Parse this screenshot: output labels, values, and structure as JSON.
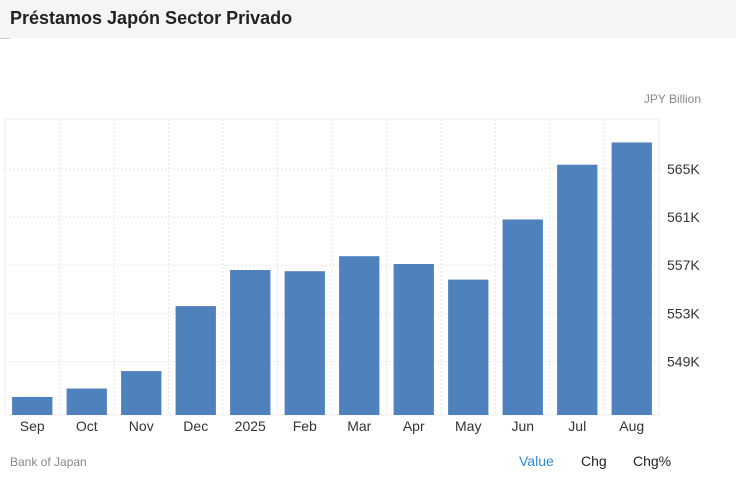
{
  "page": {
    "title": "Préstamos Japón Sector Privado",
    "unit": "JPY Billion",
    "source": "Bank of Japan",
    "tabs": {
      "value": "Value",
      "chg": "Chg",
      "chg_pct": "Chg%"
    },
    "active_tab": "value",
    "colors": {
      "bar": "#4f81bd",
      "active_tab": "#2f8bd8"
    }
  },
  "chart_data": {
    "type": "bar",
    "categories": [
      "Sep",
      "Oct",
      "Nov",
      "Dec",
      "2025",
      "Feb",
      "Mar",
      "Apr",
      "May",
      "Jun",
      "Jul",
      "Aug"
    ],
    "values": [
      546050,
      546750,
      548200,
      553600,
      556600,
      556500,
      557750,
      557100,
      555800,
      560800,
      565350,
      567200
    ],
    "ylim": [
      544550,
      569150
    ],
    "yticks": [
      549000,
      553000,
      557000,
      561000,
      565000
    ],
    "ytick_labels": [
      "549K",
      "553K",
      "557K",
      "561K",
      "565K"
    ],
    "y_axis_position": "right",
    "grid": true
  }
}
